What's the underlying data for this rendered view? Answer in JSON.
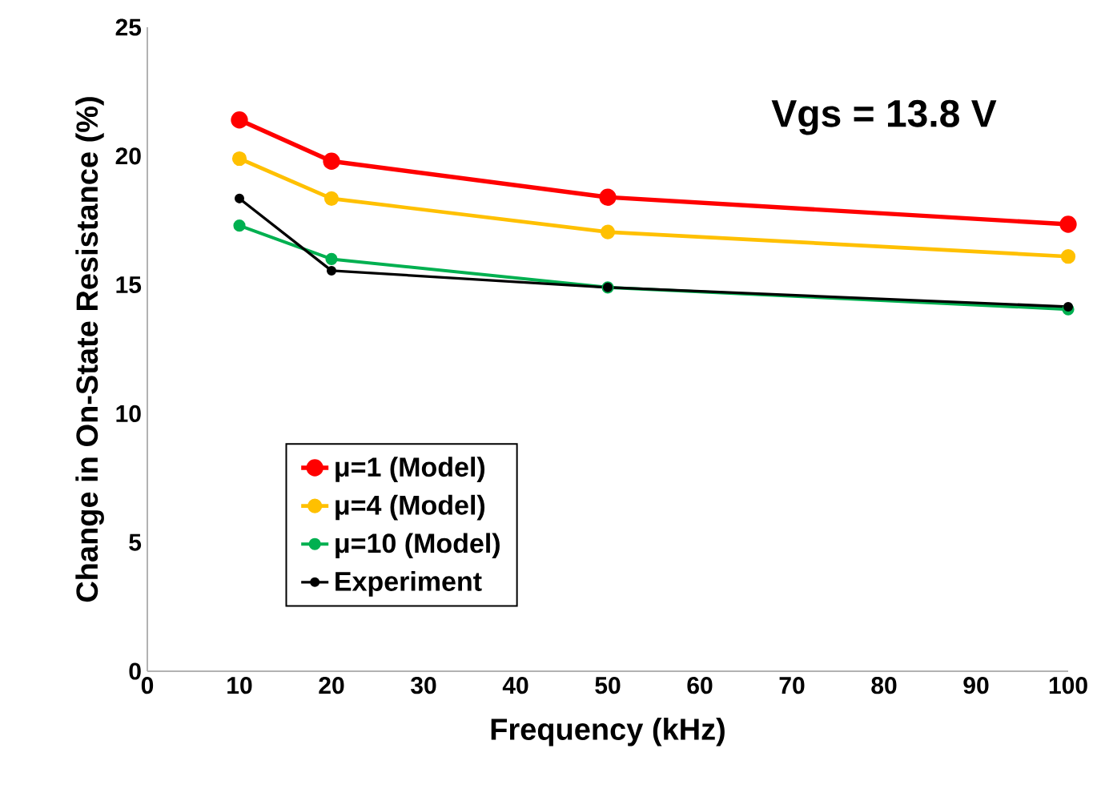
{
  "chart_data": {
    "type": "line",
    "xlabel": "Frequency (kHz)",
    "ylabel": "Change in On-State Resistance (%)",
    "x": [
      10,
      20,
      50,
      100
    ],
    "series": [
      {
        "name": "μ=1 (Model)",
        "color": "#ff0000",
        "values": [
          21.4,
          19.8,
          18.4,
          17.35
        ]
      },
      {
        "name": "μ=4 (Model)",
        "color": "#ffc000",
        "values": [
          19.9,
          18.35,
          17.05,
          16.1
        ]
      },
      {
        "name": "μ=10 (Model)",
        "color": "#00b050",
        "values": [
          17.3,
          16.0,
          14.9,
          14.05
        ]
      },
      {
        "name": "Experiment",
        "color": "#000000",
        "values": [
          18.35,
          15.55,
          14.9,
          14.15
        ]
      }
    ],
    "xlim": [
      0,
      100
    ],
    "xticks": [
      0,
      10,
      20,
      30,
      40,
      50,
      60,
      70,
      80,
      90,
      100
    ],
    "ylim": [
      0,
      25
    ],
    "yticks": [
      0,
      5,
      10,
      15,
      20,
      25
    ],
    "annotations": [
      "Vgs = 13.8 V"
    ],
    "legend": "bottom left",
    "marker": "circle",
    "line_style": "solid",
    "grid": false
  }
}
